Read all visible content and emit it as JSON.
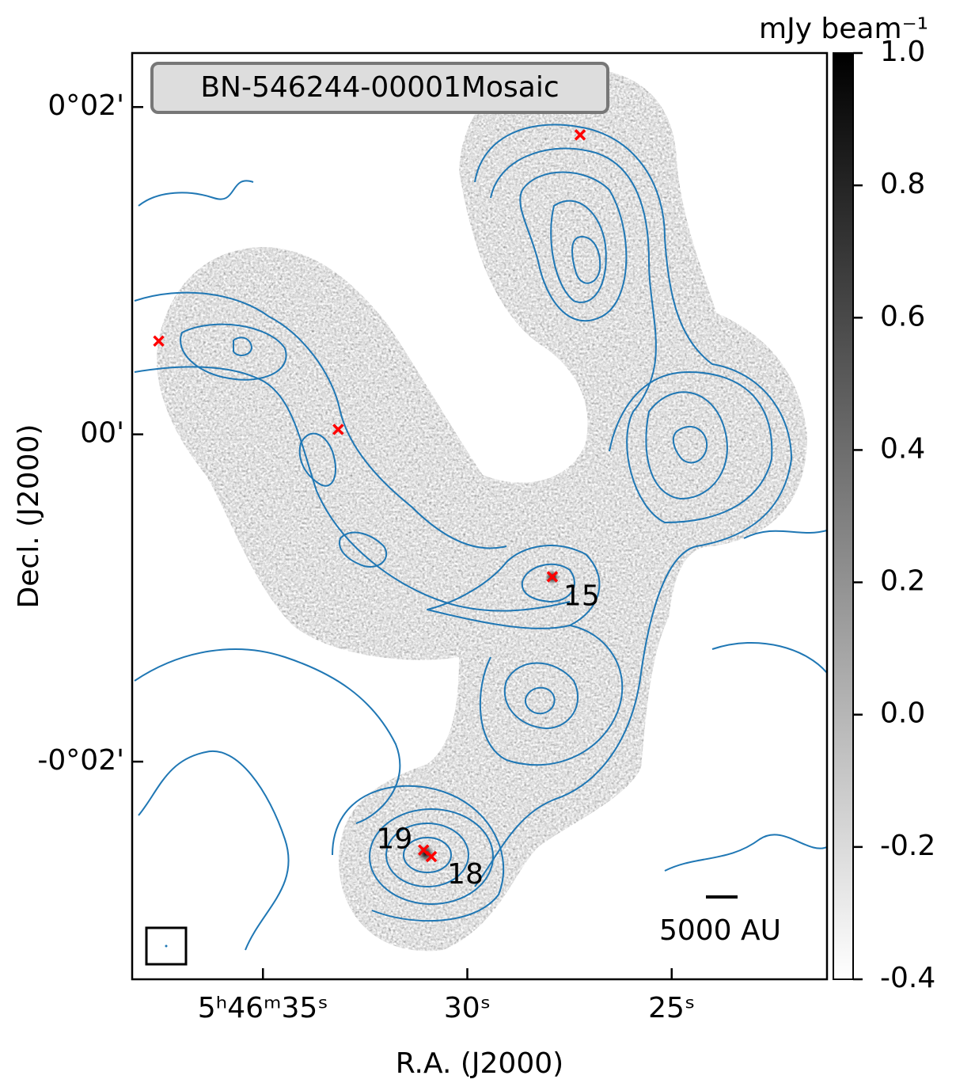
{
  "chart_data": {
    "type": "image",
    "title": "BN-546244-00001Mosaic",
    "xlabel": "R.A. (J2000)",
    "ylabel": "Decl. (J2000)",
    "xlim": [
      38.2,
      21.2
    ],
    "xticks": [
      {
        "value": 35,
        "label": "5ʰ46ᵐ35ˢ"
      },
      {
        "value": 30,
        "label": "30ˢ"
      },
      {
        "value": 25,
        "label": "25ˢ"
      }
    ],
    "ylim": [
      -3.33,
      2.33
    ],
    "yticks": [
      {
        "value": 2,
        "label": "0°02'"
      },
      {
        "value": 0,
        "label": "00'"
      },
      {
        "value": -2,
        "label": "-0°02'"
      }
    ],
    "colorbar": {
      "label": "mJy beam⁻¹",
      "clim": [
        -0.4,
        1.0
      ],
      "ticks": [
        {
          "value": 1,
          "label": "1.0"
        },
        0.8,
        0.6,
        0.4,
        0.2,
        {
          "value": 0,
          "label": "0.0"
        },
        -0.2,
        -0.4
      ]
    },
    "series": [
      {
        "color": "#ff0000",
        "x": [
          27.24,
          37.55,
          33.16,
          27.92,
          31.07,
          30.88
        ],
        "y": [
          1.83,
          0.57,
          0.03,
          -0.87,
          -2.54,
          -2.58
        ],
        "labels": [
          null,
          null,
          null,
          "15",
          "19",
          "18"
        ]
      }
    ],
    "scalebar": "5000 AU",
    "contour_color": "#1f77b4"
  }
}
